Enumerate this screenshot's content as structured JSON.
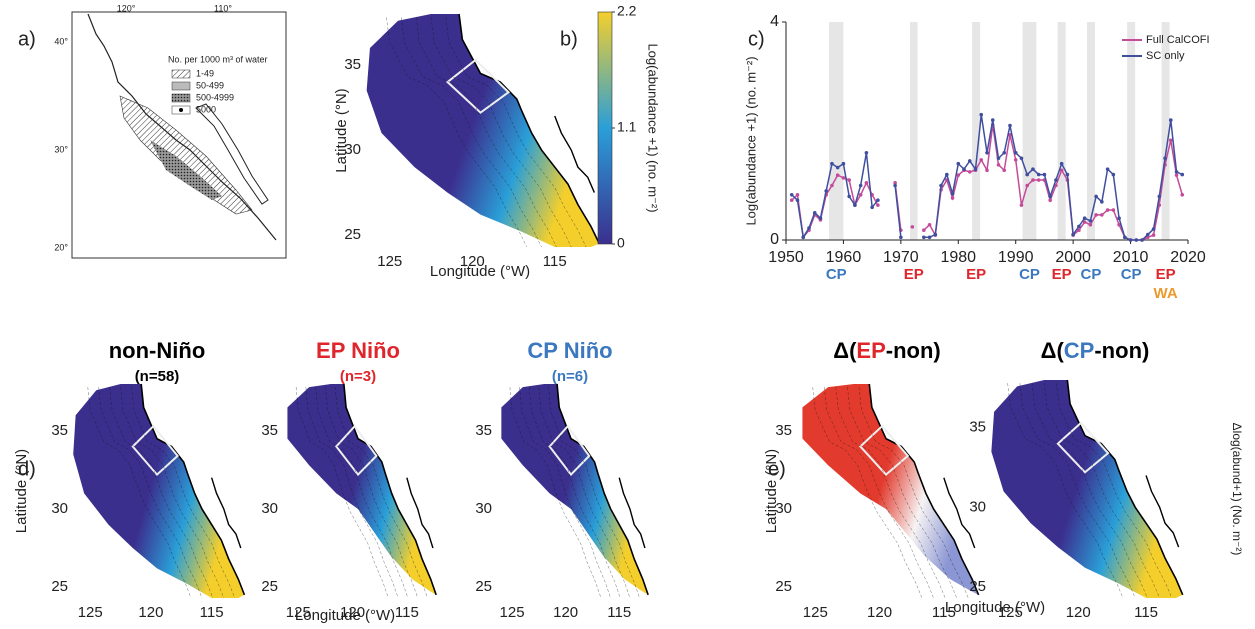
{
  "panel_a": {
    "label": "a)",
    "lon_ticks": [
      "120°",
      "110°"
    ],
    "lat_ticks": [
      "40°",
      "30°",
      "20°"
    ],
    "legend_title": "No. per 1000 m³ of water",
    "legend_items": [
      "1-49",
      "50-499",
      "500-4999",
      "5000"
    ]
  },
  "chart_data": [
    {
      "type": "line",
      "panel_label": "c)",
      "ylabel": "Log(abundance +1) (no. m⁻²)",
      "x": [
        1951,
        1952,
        1953,
        1954,
        1955,
        1956,
        1957,
        1958,
        1959,
        1960,
        1961,
        1962,
        1963,
        1964,
        1965,
        1966,
        1967,
        1968,
        1969,
        1970,
        1971,
        1972,
        1973,
        1974,
        1975,
        1976,
        1977,
        1978,
        1979,
        1980,
        1981,
        1982,
        1983,
        1984,
        1985,
        1986,
        1987,
        1988,
        1989,
        1990,
        1991,
        1992,
        1993,
        1994,
        1995,
        1996,
        1997,
        1998,
        1999,
        2000,
        2001,
        2002,
        2003,
        2004,
        2005,
        2006,
        2007,
        2008,
        2009,
        2010,
        2011,
        2012,
        2013,
        2014,
        2015,
        2016,
        2017,
        2018,
        2019
      ],
      "series": [
        {
          "name": "Full CalCOFI",
          "color": "#c44b9a",
          "values": [
            0.73,
            0.83,
            0.05,
            0.18,
            0.46,
            0.37,
            0.83,
            1.0,
            1.19,
            1.14,
            1.1,
            0.64,
            0.83,
            1.05,
            0.83,
            0.64,
            null,
            null,
            1.05,
            0.18,
            null,
            0.24,
            null,
            0.18,
            0.28,
            0.09,
            0.92,
            1.1,
            0.77,
            1.19,
            1.28,
            1.25,
            1.28,
            1.47,
            1.28,
            2.11,
            1.38,
            1.28,
            1.93,
            1.47,
            0.64,
            1.0,
            1.1,
            1.1,
            1.1,
            0.73,
            1.0,
            1.28,
            1.1,
            0.09,
            0.18,
            0.33,
            0.28,
            0.46,
            0.46,
            0.55,
            0.55,
            0.28,
            0.05,
            0,
            0,
            0,
            0.05,
            0.09,
            0.64,
            1.38,
            1.83,
            1.19,
            0.83
          ]
        },
        {
          "name": "SC only",
          "color": "#3f4f9e",
          "values": [
            0.83,
            0.73,
            0.05,
            0.22,
            0.5,
            0.4,
            0.9,
            1.4,
            1.33,
            1.4,
            0.8,
            0.64,
            1.0,
            1.6,
            0.6,
            0.73,
            null,
            null,
            1.0,
            0.05,
            null,
            null,
            null,
            0.05,
            0.05,
            0.1,
            1.0,
            1.2,
            0.85,
            1.4,
            1.3,
            1.45,
            1.3,
            2.3,
            1.6,
            2.2,
            1.5,
            1.6,
            2.1,
            1.6,
            1.5,
            1.2,
            1.3,
            1.2,
            1.2,
            0.8,
            1.1,
            1.4,
            1.2,
            0.1,
            0.25,
            0.4,
            0.35,
            0.8,
            0.7,
            1.3,
            1.2,
            0.4,
            0.05,
            0,
            0,
            0,
            0.1,
            0.2,
            0.8,
            1.5,
            2.2,
            1.25,
            1.2
          ]
        }
      ],
      "xlim": [
        1950,
        2020
      ],
      "xticks": [
        1950,
        1960,
        1970,
        1980,
        1990,
        2000,
        2010,
        2020
      ],
      "ylim": [
        0,
        4
      ],
      "yticks": [
        0,
        4
      ],
      "band_color": "#e6e6e6",
      "events": [
        {
          "start": 1957.5,
          "end": 1960,
          "labels": [
            "CP"
          ],
          "label_colors": [
            "#3b78c0"
          ]
        },
        {
          "start": 1971.6,
          "end": 1972.9,
          "labels": [
            "EP"
          ],
          "label_colors": [
            "#e0262d"
          ]
        },
        {
          "start": 1982.4,
          "end": 1983.8,
          "labels": [
            "EP"
          ],
          "label_colors": [
            "#e0262d"
          ]
        },
        {
          "start": 1991.2,
          "end": 1993.6,
          "labels": [
            "CP"
          ],
          "label_colors": [
            "#3b78c0"
          ]
        },
        {
          "start": 1997.3,
          "end": 1998.7,
          "labels": [
            "EP"
          ],
          "label_colors": [
            "#e0262d"
          ]
        },
        {
          "start": 2002.4,
          "end": 2003.8,
          "labels": [
            "CP"
          ],
          "label_colors": [
            "#3b78c0"
          ]
        },
        {
          "start": 2009.4,
          "end": 2010.8,
          "labels": [
            "CP"
          ],
          "label_colors": [
            "#3b78c0"
          ]
        },
        {
          "start": 2015.4,
          "end": 2016.8,
          "labels": [
            "EP",
            "WA"
          ],
          "label_colors": [
            "#e0262d",
            "#eb9a2e"
          ]
        }
      ]
    },
    {
      "type": "map",
      "panel_label": "b)",
      "xlim": [
        126.5,
        112.5
      ],
      "ylim": [
        24.3,
        38
      ],
      "xticks": [
        125,
        120,
        115
      ],
      "yticks": [
        25,
        30,
        35
      ],
      "xlabel": "Longitude (°W)",
      "ylabel": "Latitude (°N)",
      "colors": [
        "#3b2f8e",
        "#2a9fd8",
        "#f4cf2c"
      ],
      "colorbar": {
        "lim": [
          0,
          2.2
        ],
        "ticks": [
          0,
          1.1,
          2.2
        ],
        "label": "Log(abundance +1) (no. m⁻²)"
      }
    },
    {
      "type": "map",
      "panel_label": "d)",
      "title": [
        {
          "text": "non-Niño",
          "color": "#000000"
        }
      ],
      "subtitle": {
        "text": "(n=58)",
        "color": "#000000"
      },
      "xlim": [
        126.5,
        112.5
      ],
      "ylim": [
        24.3,
        38
      ],
      "xticks": [
        125,
        120,
        115
      ],
      "yticks": [
        25,
        30,
        35
      ],
      "ylabel": "Latitude (°N)",
      "colors": [
        "#3b2f8e",
        "#2a9fd8",
        "#f4cf2c"
      ]
    },
    {
      "type": "map",
      "title": [
        {
          "text": "EP Niño",
          "color": "#e0262d"
        }
      ],
      "subtitle": {
        "text": "(n=3)",
        "color": "#e0262d"
      },
      "xlim": [
        126.5,
        112.5
      ],
      "ylim": [
        24.3,
        38
      ],
      "xticks": [
        125,
        120,
        115
      ],
      "yticks": [
        25,
        30,
        35
      ],
      "xlabel": "Longitude (°W)",
      "colors": [
        "#3b2f8e",
        "#2a9fd8",
        "#f4cf2c"
      ]
    },
    {
      "type": "map",
      "title": [
        {
          "text": "CP Niño",
          "color": "#3b78c0"
        }
      ],
      "subtitle": {
        "text": "(n=6)",
        "color": "#3b78c0"
      },
      "xlim": [
        126.5,
        112.5
      ],
      "ylim": [
        24.3,
        38
      ],
      "xticks": [
        125,
        120,
        115
      ],
      "yticks": [
        25,
        30,
        35
      ],
      "colors": [
        "#3b2f8e",
        "#2a9fd8",
        "#f4cf2c"
      ]
    },
    {
      "type": "map",
      "panel_label": "e)",
      "title": [
        {
          "text": "Δ(",
          "color": "#000000"
        },
        {
          "text": "EP",
          "color": "#e0262d"
        },
        {
          "text": "-non)",
          "color": "#000000"
        }
      ],
      "xlim": [
        126.5,
        112.5
      ],
      "ylim": [
        24.3,
        38
      ],
      "xticks": [
        125,
        120,
        115
      ],
      "yticks": [
        25,
        30,
        35
      ],
      "xlabel": "Longitude (°W)",
      "ylabel": "Latitude (°N)",
      "colors": [
        "#e23b2e",
        "#f6f3f3",
        "#8b96d4"
      ]
    },
    {
      "type": "map",
      "title": [
        {
          "text": "Δ(",
          "color": "#000000"
        },
        {
          "text": "CP",
          "color": "#3b78c0"
        },
        {
          "text": "-non)",
          "color": "#000000"
        }
      ],
      "xlim": [
        126.5,
        112.5
      ],
      "ylim": [
        24.3,
        38
      ],
      "xticks": [
        125,
        120,
        115
      ],
      "yticks": [
        25,
        30,
        35
      ],
      "zlabel": "Δlog(abund+1) (No. m⁻²)",
      "colors": [
        "#3b2f8e",
        "#2a9fd8",
        "#f4cf2c"
      ]
    }
  ]
}
